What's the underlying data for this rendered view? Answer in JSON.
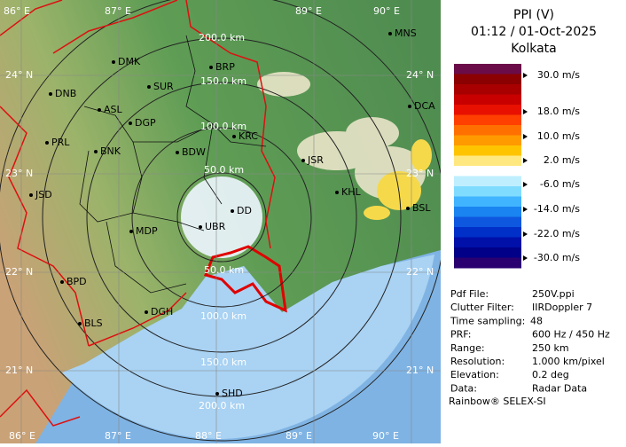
{
  "header": {
    "title": "PPI (V)",
    "time": "01:12 / 01-Oct-2025",
    "station": "Kolkata"
  },
  "legend": {
    "labels": [
      "30.0 m/s",
      "18.0 m/s",
      "10.0 m/s",
      "2.0 m/s",
      "-6.0 m/s",
      "-14.0 m/s",
      "-22.0 m/s",
      "-30.0 m/s"
    ]
  },
  "map": {
    "lon_labels_top": [
      "86° E",
      "87° E",
      "89° E",
      "90° E"
    ],
    "lon_labels_bottom": [
      "86° E",
      "87° E",
      "88° E",
      "89° E",
      "90° E"
    ],
    "lat_labels_left": [
      "24° N",
      "23° N",
      "22° N",
      "21° N"
    ],
    "lat_labels_right": [
      "24° N",
      "23° N",
      "22° N",
      "21° N"
    ],
    "ring_labels_top": [
      "200.0 km",
      "150.0 km",
      "100.0 km",
      "50.0 km"
    ],
    "ring_labels_bottom": [
      "50.0 km",
      "100.0 km",
      "150.0 km",
      "200.0 km"
    ],
    "cities": [
      "MNS",
      "DMK",
      "BRP",
      "DNB",
      "SUR",
      "ASL",
      "DGP",
      "DCA",
      "PRL",
      "BNK",
      "KRC",
      "BDW",
      "JSR",
      "KHL",
      "JSD",
      "BSL",
      "MDP",
      "DD",
      "UBR",
      "BPD",
      "DGH",
      "BLS",
      "SHD"
    ]
  },
  "info": {
    "rows": [
      [
        "Pdf File:",
        "250V.ppi"
      ],
      [
        "Clutter Filter:",
        "IIRDoppler 7"
      ],
      [
        "Time sampling:",
        "48"
      ],
      [
        "PRF:",
        "600 Hz / 450 Hz"
      ],
      [
        "Range:",
        "250 km"
      ],
      [
        "Resolution:",
        "1.000 km/pixel"
      ],
      [
        "Elevation:",
        "0.2 deg"
      ],
      [
        "Data:",
        "Radar Data"
      ]
    ]
  },
  "footer": "Rainbow® SELEX-SI"
}
